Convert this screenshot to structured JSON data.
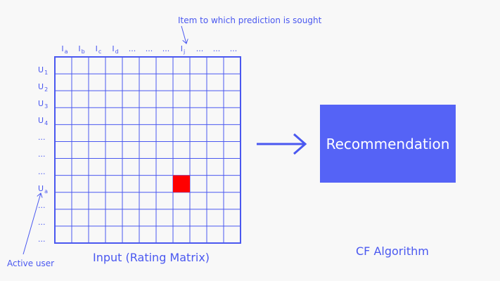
{
  "colors": {
    "accent": "#4a58f0",
    "box_fill": "#5563f6",
    "highlight": "#ff0000",
    "background": "#f8f8f8"
  },
  "top_annotation": "Item to which prediction is sought",
  "column_labels": [
    {
      "base": "I",
      "sub": "a"
    },
    {
      "base": "I",
      "sub": "b"
    },
    {
      "base": "I",
      "sub": "c"
    },
    {
      "base": "I",
      "sub": "d"
    },
    {
      "base": "...",
      "sub": ""
    },
    {
      "base": "...",
      "sub": ""
    },
    {
      "base": "...",
      "sub": ""
    },
    {
      "base": "I",
      "sub": "j"
    },
    {
      "base": "...",
      "sub": ""
    },
    {
      "base": "...",
      "sub": ""
    },
    {
      "base": "...",
      "sub": ""
    }
  ],
  "row_labels": [
    {
      "base": "U",
      "sub": "1"
    },
    {
      "base": "U",
      "sub": "2"
    },
    {
      "base": "U",
      "sub": "3"
    },
    {
      "base": "U",
      "sub": "4"
    },
    {
      "base": "...",
      "sub": ""
    },
    {
      "base": "...",
      "sub": ""
    },
    {
      "base": "...",
      "sub": ""
    },
    {
      "base": "U",
      "sub": "a"
    },
    {
      "base": "...",
      "sub": ""
    },
    {
      "base": "...",
      "sub": ""
    },
    {
      "base": "...",
      "sub": ""
    }
  ],
  "matrix": {
    "rows": 11,
    "cols": 11,
    "highlight_cell": {
      "row": 7,
      "col": 7
    }
  },
  "matrix_caption": "Input (Rating Matrix)",
  "active_user_label": "Active user",
  "recommendation_label": "Recommendation",
  "algorithm_label": "CF Algorithm"
}
